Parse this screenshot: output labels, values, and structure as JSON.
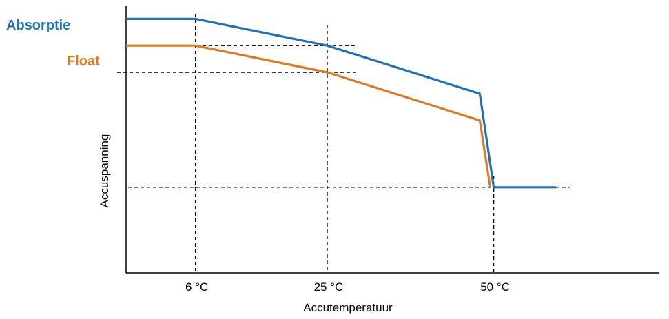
{
  "chart_data": {
    "type": "line",
    "title": "",
    "xlabel": "Accutemperatuur",
    "ylabel": "Accuspanning",
    "x_ticks": [
      {
        "value": 6,
        "label": "6 °C"
      },
      {
        "value": 25,
        "label": "25 °C"
      },
      {
        "value": 50,
        "label": "50 °C"
      }
    ],
    "xlim": [
      -4,
      70
    ],
    "ylim": [
      0,
      100
    ],
    "grid": false,
    "series": [
      {
        "name": "Absorptie",
        "color": "#1F72B8",
        "points": [
          [
            -4,
            95
          ],
          [
            6,
            95
          ],
          [
            25,
            85
          ],
          [
            47,
            67
          ],
          [
            49,
            32
          ],
          [
            58,
            32
          ]
        ]
      },
      {
        "name": "Float",
        "color": "#E07A22",
        "points": [
          [
            -4,
            85
          ],
          [
            6,
            85
          ],
          [
            25,
            75
          ],
          [
            47,
            57
          ],
          [
            48.5,
            32
          ]
        ]
      }
    ],
    "reference_lines": [
      {
        "axis": "x",
        "value": 6
      },
      {
        "axis": "x",
        "value": 25
      },
      {
        "axis": "x",
        "value": 49
      },
      {
        "axis": "y",
        "value": 85
      },
      {
        "axis": "y",
        "value": 75
      },
      {
        "axis": "y",
        "value": 32
      }
    ],
    "colors": {
      "axis": "#000000",
      "guides": "#000000"
    }
  }
}
